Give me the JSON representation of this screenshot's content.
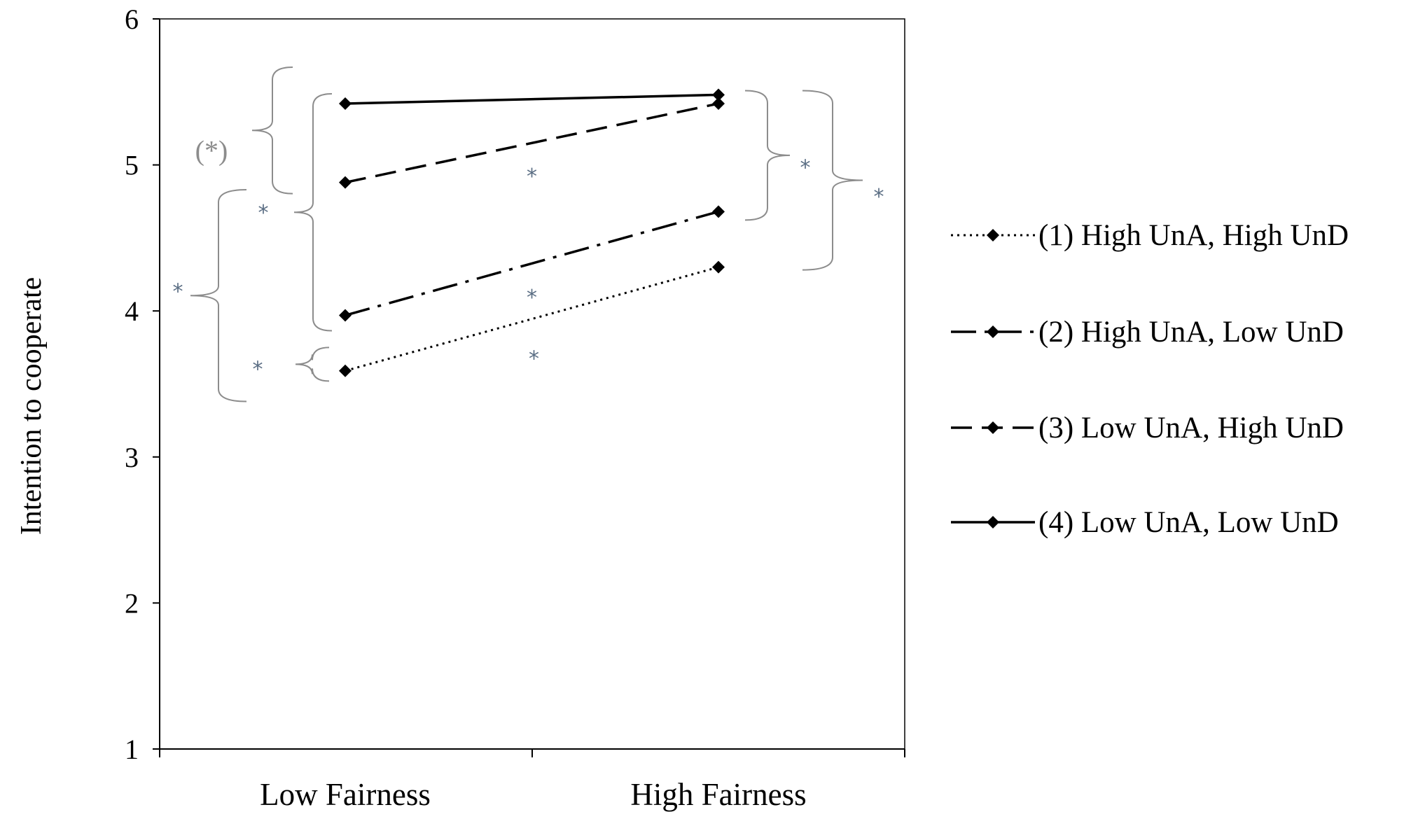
{
  "chart_data": {
    "type": "line",
    "ylabel": "Intention to cooperate",
    "xlabel": "",
    "categories": [
      "Low Fairness",
      "High Fairness"
    ],
    "ylim": [
      1,
      6
    ],
    "yticks": [
      1,
      2,
      3,
      4,
      5,
      6
    ],
    "grid": false,
    "legend_position": "right",
    "series": [
      {
        "name": "(1) High UnA, High UnD",
        "values": [
          3.59,
          4.3
        ],
        "style": "dotted"
      },
      {
        "name": "(2) High UnA, Low UnD",
        "values": [
          3.97,
          4.68
        ],
        "style": "dash-dot"
      },
      {
        "name": "(3) Low UnA, High UnD",
        "values": [
          4.88,
          5.42
        ],
        "style": "dashed"
      },
      {
        "name": "(4) Low UnA, Low UnD",
        "values": [
          5.42,
          5.48
        ],
        "style": "solid"
      }
    ],
    "annotations": [
      {
        "text": "(*)",
        "kind": "bracket-left",
        "between": [
          3,
          4
        ],
        "at": "Low Fairness"
      },
      {
        "text": "*",
        "kind": "bracket-left",
        "between": [
          2,
          4
        ],
        "at": "Low Fairness"
      },
      {
        "text": "*",
        "kind": "bracket-left",
        "between": [
          1,
          3
        ],
        "at": "Low Fairness"
      },
      {
        "text": "*",
        "kind": "bracket-left",
        "between": [
          1,
          2
        ],
        "at": "Low Fairness"
      },
      {
        "text": "*",
        "kind": "bracket-right",
        "between": [
          2,
          4
        ],
        "at": "High Fairness"
      },
      {
        "text": "*",
        "kind": "bracket-right",
        "between": [
          1,
          4
        ],
        "at": "High Fairness"
      },
      {
        "text": "*",
        "kind": "slope",
        "series": 3
      },
      {
        "text": "*",
        "kind": "slope",
        "series": 2
      },
      {
        "text": "*",
        "kind": "slope",
        "series": 1
      }
    ]
  },
  "colors": {
    "series": "#000000",
    "axis": "#000000",
    "bracket": "#8c8c8c",
    "star": "#5b6e84"
  }
}
